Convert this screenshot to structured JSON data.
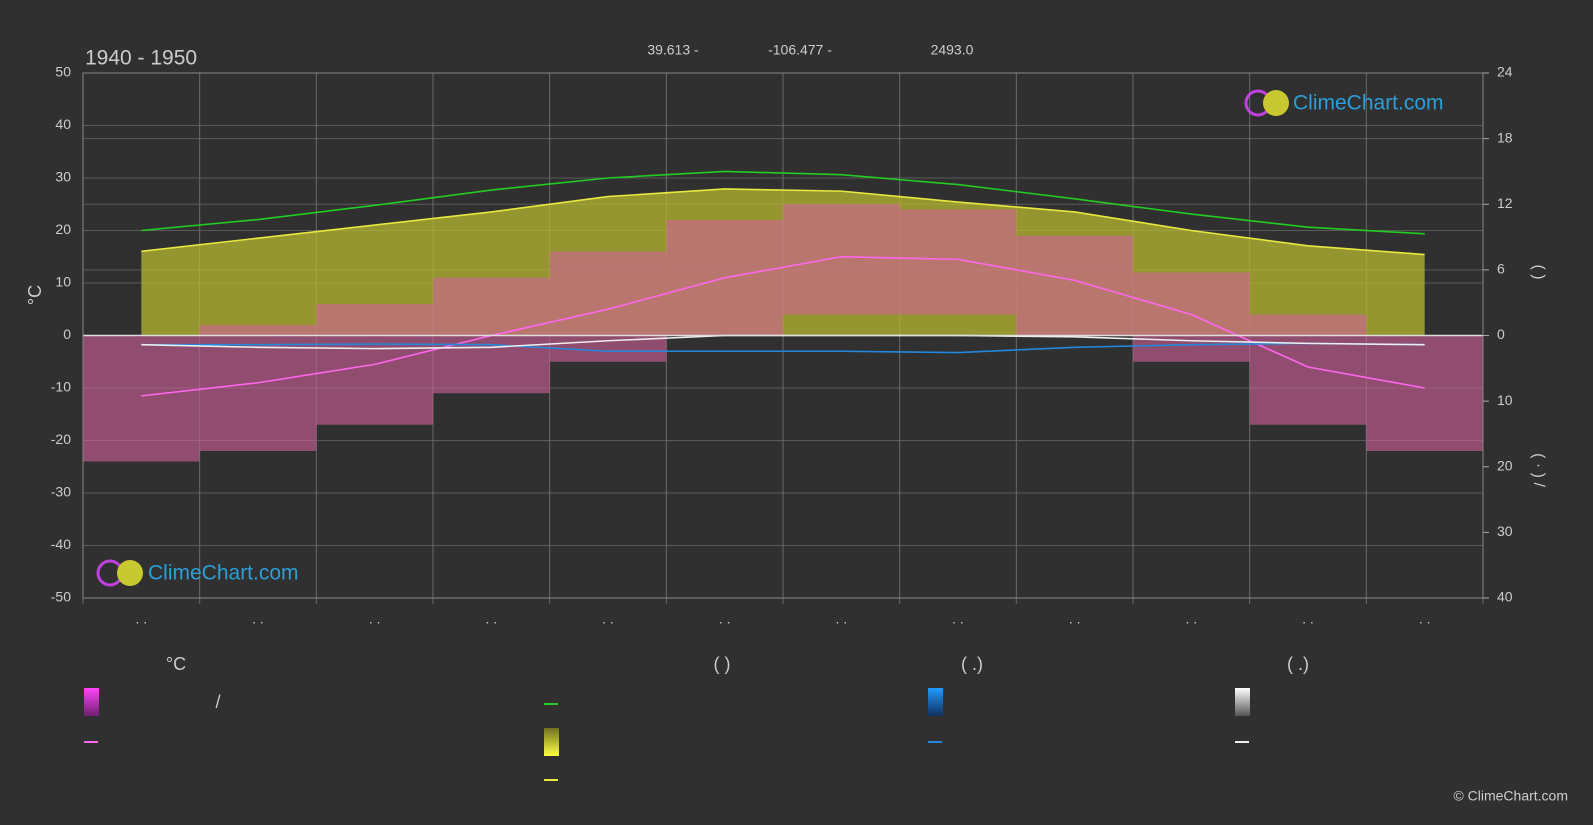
{
  "title": "1940 - 1950",
  "header": [
    "39.613 -",
    "-106.477 -",
    "2493.0"
  ],
  "watermark": "ClimeChart.com",
  "copyright": "© ClimeChart.com",
  "chart_data": {
    "type": "line",
    "categories": [
      ". .",
      ". .",
      ". .",
      ". .",
      ". .",
      ". .",
      ". .",
      ". .",
      ". .",
      ". .",
      ". .",
      ". ."
    ],
    "ylabel": "°C",
    "ylim": [
      -50,
      50
    ],
    "yticks": [
      -50,
      -40,
      -30,
      -20,
      -10,
      0,
      10,
      20,
      30,
      40,
      50
    ],
    "y2lim": [
      0,
      24
    ],
    "y2ticks": [
      0,
      6,
      12,
      18,
      24
    ],
    "y2label": "(   )",
    "y3lim": [
      0,
      40
    ],
    "y3ticks": [
      10,
      20,
      30,
      40
    ],
    "y3label": "(  ·  )   /",
    "grid": true,
    "series": [
      {
        "color": "#b8b830",
        "style": "area",
        "axis": "y2",
        "values": [
          7.7,
          8.9,
          10.1,
          11.3,
          12.7,
          13.4,
          13.2,
          12.2,
          11.3,
          9.6,
          8.2,
          7.4
        ]
      },
      {
        "color": "#d0609a",
        "style": "band",
        "values": [
          0,
          2,
          6,
          11,
          16,
          22,
          25,
          24,
          19,
          12,
          4,
          0
        ],
        "low": [
          -24,
          -22,
          -17,
          -11,
          -5,
          0,
          4,
          4,
          0,
          -5,
          -17,
          -22
        ]
      },
      {
        "color": "#22cc22",
        "style": "line",
        "axis": "y2",
        "values": [
          9.6,
          10.6,
          11.9,
          13.3,
          14.4,
          15.0,
          14.7,
          13.8,
          12.5,
          11.1,
          9.9,
          9.3
        ]
      },
      {
        "color": "#e8e840",
        "style": "line",
        "axis": "y2",
        "values": [
          7.7,
          8.9,
          10.1,
          11.3,
          12.7,
          13.4,
          13.2,
          12.2,
          11.3,
          9.6,
          8.2,
          7.4
        ]
      },
      {
        "color": "#ff66ee",
        "style": "line",
        "values": [
          -11.5,
          -9,
          -5.5,
          0,
          5,
          11,
          15,
          14.5,
          10.5,
          4,
          -6,
          -10
        ]
      },
      {
        "color": "#2288dd",
        "style": "line",
        "axis": "y3",
        "values": [
          1.4,
          1.4,
          1.3,
          1.4,
          2.4,
          2.4,
          2.4,
          2.6,
          1.8,
          1.4,
          1.2,
          1.4
        ]
      },
      {
        "color": "#eeeeee",
        "style": "line",
        "axis": "y3",
        "values": [
          1.4,
          1.8,
          2.0,
          1.8,
          0.8,
          0,
          0,
          0,
          0.2,
          0.8,
          1.2,
          1.4
        ]
      }
    ],
    "legend_headers": [
      "°C",
      "(          )",
      "(   .)",
      "(   .)"
    ],
    "legend_note": "/"
  }
}
